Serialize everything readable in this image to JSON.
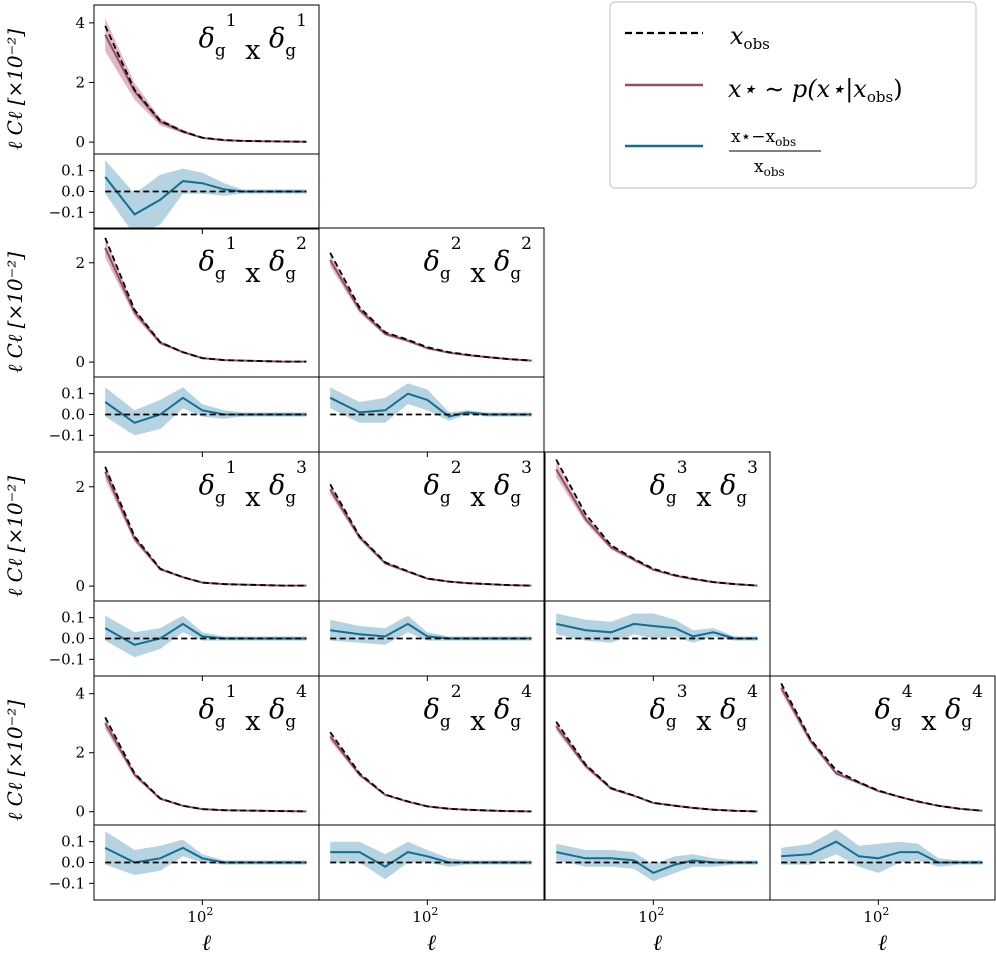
{
  "colors": {
    "obs": "#000000",
    "sample_line": "#98496a",
    "sample_band": "#c8899d",
    "ratio_line": "#136f92",
    "ratio_band": "#8dbccf"
  },
  "legend": {
    "obs_label": {
      "sym": "x",
      "sub": "obs"
    },
    "sample_label": {
      "text": "x⋆ ∼ p(x⋆|x",
      "sub": "obs",
      "close": ")"
    },
    "ratio_label": {
      "num": "x⋆−x",
      "num_sub": "obs",
      "den": "x",
      "den_sub": "obs"
    }
  },
  "chart_data": {
    "type": "line",
    "grid_shape": [
      4,
      4
    ],
    "x_scale": "log",
    "xlim": [
      33,
      330
    ],
    "x": [
      37,
      50,
      65,
      82,
      100,
      125,
      150,
      185,
      230,
      290
    ],
    "xtick_label": {
      "base": "10",
      "exp": "2",
      "value": 100
    },
    "xlabel": "ℓ",
    "ylabel": "ℓ Cℓ [×10⁻²]",
    "ratio_ylim": [
      -0.18,
      0.18
    ],
    "ratio_yticks": [
      "0.1",
      "0.0",
      "−0.1"
    ],
    "panels": [
      {
        "row": 0,
        "col": 0,
        "title": {
          "a": "1",
          "b": "1"
        },
        "ylim": [
          -0.4,
          4.6
        ],
        "yticks": [
          0,
          2,
          4
        ],
        "obs": [
          3.9,
          1.75,
          0.72,
          0.36,
          0.15,
          0.07,
          0.04,
          0.03,
          0.02,
          0.01
        ],
        "sample": [
          3.6,
          1.7,
          0.68,
          0.35,
          0.14,
          0.06,
          0.04,
          0.03,
          0.02,
          0.01
        ],
        "sample_band": [
          0.55,
          0.28,
          0.12,
          0.06,
          0.03,
          0.02,
          0.01,
          0.01,
          0.01,
          0.01
        ],
        "ratio": [
          0.07,
          -0.11,
          -0.04,
          0.05,
          0.04,
          0.01,
          0.0,
          0.0,
          0.0,
          0.0
        ],
        "ratio_band": [
          0.08,
          0.1,
          0.12,
          0.06,
          0.05,
          0.03,
          0.01,
          0.01,
          0.01,
          0.01
        ]
      },
      {
        "row": 1,
        "col": 0,
        "title": {
          "a": "1",
          "b": "2"
        },
        "ylim": [
          -0.3,
          2.7
        ],
        "yticks": [
          0,
          2
        ],
        "obs": [
          2.5,
          1.05,
          0.4,
          0.2,
          0.08,
          0.04,
          0.03,
          0.02,
          0.01,
          0.01
        ],
        "sample": [
          2.3,
          1.0,
          0.39,
          0.2,
          0.08,
          0.04,
          0.03,
          0.02,
          0.01,
          0.01
        ],
        "sample_band": [
          0.2,
          0.08,
          0.04,
          0.02,
          0.01,
          0.01,
          0.01,
          0.01,
          0.01,
          0.01
        ],
        "ratio": [
          0.06,
          -0.04,
          0.0,
          0.08,
          0.02,
          0.0,
          0.0,
          0.0,
          0.0,
          0.0
        ],
        "ratio_band": [
          0.07,
          0.06,
          0.07,
          0.05,
          0.03,
          0.02,
          0.01,
          0.01,
          0.01,
          0.01
        ]
      },
      {
        "row": 1,
        "col": 1,
        "title": {
          "a": "2",
          "b": "2"
        },
        "ylim": [
          -0.3,
          2.7
        ],
        "yticks": [],
        "obs": [
          2.2,
          1.1,
          0.6,
          0.45,
          0.3,
          0.2,
          0.15,
          0.1,
          0.06,
          0.03
        ],
        "sample": [
          2.05,
          1.05,
          0.57,
          0.43,
          0.28,
          0.19,
          0.14,
          0.1,
          0.06,
          0.03
        ],
        "sample_band": [
          0.12,
          0.06,
          0.04,
          0.03,
          0.02,
          0.02,
          0.01,
          0.01,
          0.01,
          0.01
        ],
        "ratio": [
          0.08,
          0.01,
          0.02,
          0.1,
          0.07,
          -0.01,
          0.01,
          0.0,
          0.0,
          0.0
        ],
        "ratio_band": [
          0.05,
          0.05,
          0.06,
          0.05,
          0.05,
          0.02,
          0.01,
          0.01,
          0.01,
          0.01
        ]
      },
      {
        "row": 2,
        "col": 0,
        "title": {
          "a": "1",
          "b": "3"
        },
        "ylim": [
          -0.3,
          2.7
        ],
        "yticks": [
          0,
          2
        ],
        "obs": [
          2.4,
          1.0,
          0.35,
          0.18,
          0.07,
          0.04,
          0.03,
          0.02,
          0.01,
          0.01
        ],
        "sample": [
          2.3,
          0.95,
          0.34,
          0.18,
          0.07,
          0.04,
          0.03,
          0.02,
          0.01,
          0.01
        ],
        "sample_band": [
          0.15,
          0.06,
          0.03,
          0.02,
          0.01,
          0.01,
          0.01,
          0.01,
          0.01,
          0.01
        ],
        "ratio": [
          0.05,
          -0.03,
          0.0,
          0.07,
          0.01,
          0.0,
          0.0,
          0.0,
          0.0,
          0.0
        ],
        "ratio_band": [
          0.06,
          0.06,
          0.05,
          0.04,
          0.02,
          0.01,
          0.01,
          0.01,
          0.01,
          0.01
        ]
      },
      {
        "row": 2,
        "col": 1,
        "title": {
          "a": "2",
          "b": "3"
        },
        "ylim": [
          -0.3,
          2.7
        ],
        "yticks": [],
        "obs": [
          2.05,
          1.0,
          0.48,
          0.3,
          0.15,
          0.09,
          0.06,
          0.04,
          0.02,
          0.01
        ],
        "sample": [
          1.95,
          0.98,
          0.46,
          0.29,
          0.15,
          0.09,
          0.06,
          0.04,
          0.02,
          0.01
        ],
        "sample_band": [
          0.1,
          0.05,
          0.03,
          0.02,
          0.01,
          0.01,
          0.01,
          0.01,
          0.01,
          0.01
        ],
        "ratio": [
          0.04,
          0.02,
          0.01,
          0.07,
          0.01,
          0.0,
          0.0,
          0.0,
          0.0,
          0.0
        ],
        "ratio_band": [
          0.05,
          0.04,
          0.04,
          0.04,
          0.02,
          0.01,
          0.01,
          0.01,
          0.01,
          0.01
        ]
      },
      {
        "row": 2,
        "col": 2,
        "title": {
          "a": "3",
          "b": "3"
        },
        "ylim": [
          -0.3,
          2.7
        ],
        "yticks": [],
        "obs": [
          2.55,
          1.45,
          0.82,
          0.55,
          0.35,
          0.22,
          0.15,
          0.08,
          0.04,
          0.01
        ],
        "sample": [
          2.35,
          1.35,
          0.78,
          0.53,
          0.33,
          0.21,
          0.14,
          0.08,
          0.04,
          0.01
        ],
        "sample_band": [
          0.15,
          0.08,
          0.05,
          0.03,
          0.02,
          0.02,
          0.01,
          0.01,
          0.01,
          0.01
        ],
        "ratio": [
          0.07,
          0.04,
          0.03,
          0.07,
          0.06,
          0.05,
          0.01,
          0.03,
          0.0,
          0.0
        ],
        "ratio_band": [
          0.05,
          0.05,
          0.05,
          0.05,
          0.06,
          0.04,
          0.03,
          0.02,
          0.01,
          0.01
        ]
      },
      {
        "row": 3,
        "col": 0,
        "title": {
          "a": "1",
          "b": "4"
        },
        "ylim": [
          -0.45,
          4.6
        ],
        "yticks": [
          0,
          2,
          4
        ],
        "obs": [
          3.2,
          1.3,
          0.45,
          0.2,
          0.09,
          0.05,
          0.04,
          0.03,
          0.02,
          0.01
        ],
        "sample": [
          3.0,
          1.25,
          0.44,
          0.2,
          0.09,
          0.05,
          0.04,
          0.03,
          0.02,
          0.01
        ],
        "sample_band": [
          0.2,
          0.08,
          0.04,
          0.02,
          0.01,
          0.01,
          0.01,
          0.01,
          0.01,
          0.01
        ],
        "ratio": [
          0.07,
          0.0,
          0.02,
          0.07,
          0.02,
          0.0,
          0.0,
          0.0,
          0.0,
          0.0
        ],
        "ratio_band": [
          0.08,
          0.06,
          0.06,
          0.04,
          0.02,
          0.01,
          0.01,
          0.01,
          0.01,
          0.01
        ]
      },
      {
        "row": 3,
        "col": 1,
        "title": {
          "a": "2",
          "b": "4"
        },
        "ylim": [
          -0.45,
          4.6
        ],
        "yticks": [],
        "obs": [
          2.7,
          1.3,
          0.58,
          0.35,
          0.18,
          0.1,
          0.07,
          0.04,
          0.02,
          0.01
        ],
        "sample": [
          2.55,
          1.25,
          0.57,
          0.34,
          0.18,
          0.1,
          0.07,
          0.04,
          0.02,
          0.01
        ],
        "sample_band": [
          0.15,
          0.06,
          0.03,
          0.02,
          0.01,
          0.01,
          0.01,
          0.01,
          0.01,
          0.01
        ],
        "ratio": [
          0.05,
          0.05,
          -0.02,
          0.05,
          0.03,
          0.0,
          0.0,
          0.0,
          0.0,
          0.0
        ],
        "ratio_band": [
          0.05,
          0.05,
          0.06,
          0.05,
          0.03,
          0.02,
          0.01,
          0.01,
          0.01,
          0.01
        ]
      },
      {
        "row": 3,
        "col": 2,
        "title": {
          "a": "3",
          "b": "4"
        },
        "ylim": [
          -0.45,
          4.6
        ],
        "yticks": [],
        "obs": [
          3.05,
          1.6,
          0.8,
          0.55,
          0.3,
          0.2,
          0.13,
          0.07,
          0.03,
          0.01
        ],
        "sample": [
          2.9,
          1.55,
          0.78,
          0.54,
          0.3,
          0.2,
          0.13,
          0.07,
          0.03,
          0.01
        ],
        "sample_band": [
          0.15,
          0.08,
          0.04,
          0.03,
          0.02,
          0.02,
          0.01,
          0.01,
          0.01,
          0.01
        ],
        "ratio": [
          0.05,
          0.02,
          0.02,
          0.01,
          -0.05,
          -0.01,
          0.01,
          0.0,
          0.0,
          0.0
        ],
        "ratio_band": [
          0.04,
          0.04,
          0.04,
          0.04,
          0.04,
          0.04,
          0.03,
          0.02,
          0.01,
          0.01
        ]
      },
      {
        "row": 3,
        "col": 3,
        "title": {
          "a": "4",
          "b": "4"
        },
        "ylim": [
          -0.45,
          4.6
        ],
        "yticks": [],
        "obs": [
          4.35,
          2.45,
          1.4,
          1.0,
          0.72,
          0.5,
          0.35,
          0.2,
          0.1,
          0.03
        ],
        "sample": [
          4.2,
          2.4,
          1.3,
          0.98,
          0.7,
          0.5,
          0.34,
          0.2,
          0.1,
          0.03
        ],
        "sample_band": [
          0.15,
          0.1,
          0.06,
          0.04,
          0.03,
          0.03,
          0.02,
          0.02,
          0.01,
          0.01
        ],
        "ratio": [
          0.03,
          0.04,
          0.1,
          0.03,
          0.02,
          0.05,
          0.05,
          0.0,
          0.0,
          0.0
        ],
        "ratio_band": [
          0.04,
          0.05,
          0.06,
          0.05,
          0.07,
          0.05,
          0.04,
          0.02,
          0.01,
          0.01
        ]
      }
    ]
  }
}
